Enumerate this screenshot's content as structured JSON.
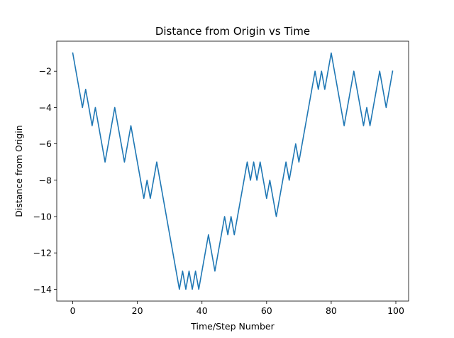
{
  "chart_data": {
    "type": "line",
    "title": "Distance from Origin vs Time",
    "xlabel": "Time/Step Number",
    "ylabel": "Distance from Origin",
    "xlim": [
      -4.95,
      103.95
    ],
    "ylim": [
      -14.65,
      -0.35
    ],
    "xticks": [
      0,
      20,
      40,
      60,
      80,
      100
    ],
    "yticks": [
      -14,
      -12,
      -10,
      -8,
      -6,
      -4,
      -2
    ],
    "xtick_labels": [
      "0",
      "20",
      "40",
      "60",
      "80",
      "100"
    ],
    "ytick_labels": [
      "−14",
      "−12",
      "−10",
      "−8",
      "−6",
      "−4",
      "−2"
    ],
    "grid": false,
    "series": [
      {
        "color": "#1f77b4",
        "x": [
          0,
          1,
          2,
          3,
          4,
          5,
          6,
          7,
          8,
          9,
          10,
          11,
          12,
          13,
          14,
          15,
          16,
          17,
          18,
          19,
          20,
          21,
          22,
          23,
          24,
          25,
          26,
          27,
          28,
          29,
          30,
          31,
          32,
          33,
          34,
          35,
          36,
          37,
          38,
          39,
          40,
          41,
          42,
          43,
          44,
          45,
          46,
          47,
          48,
          49,
          50,
          51,
          52,
          53,
          54,
          55,
          56,
          57,
          58,
          59,
          60,
          61,
          62,
          63,
          64,
          65,
          66,
          67,
          68,
          69,
          70,
          71,
          72,
          73,
          74,
          75,
          76,
          77,
          78,
          79,
          80,
          81,
          82,
          83,
          84,
          85,
          86,
          87,
          88,
          89,
          90,
          91,
          92,
          93,
          94,
          95,
          96,
          97,
          98,
          99
        ],
        "y": [
          -1,
          -2,
          -3,
          -4,
          -3,
          -4,
          -5,
          -4,
          -5,
          -6,
          -7,
          -6,
          -5,
          -4,
          -5,
          -6,
          -7,
          -6,
          -5,
          -6,
          -7,
          -8,
          -9,
          -8,
          -9,
          -8,
          -7,
          -8,
          -9,
          -10,
          -11,
          -12,
          -13,
          -14,
          -13,
          -14,
          -13,
          -14,
          -13,
          -14,
          -13,
          -12,
          -11,
          -12,
          -13,
          -12,
          -11,
          -10,
          -11,
          -10,
          -11,
          -10,
          -9,
          -8,
          -7,
          -8,
          -7,
          -8,
          -7,
          -8,
          -9,
          -8,
          -9,
          -10,
          -9,
          -8,
          -7,
          -8,
          -7,
          -6,
          -7,
          -6,
          -5,
          -4,
          -3,
          -2,
          -3,
          -2,
          -3,
          -2,
          -1,
          -2,
          -3,
          -4,
          -5,
          -4,
          -3,
          -2,
          -3,
          -4,
          -5,
          -4,
          -5,
          -4,
          -3,
          -2,
          -3,
          -4,
          -3,
          -2
        ]
      }
    ]
  }
}
